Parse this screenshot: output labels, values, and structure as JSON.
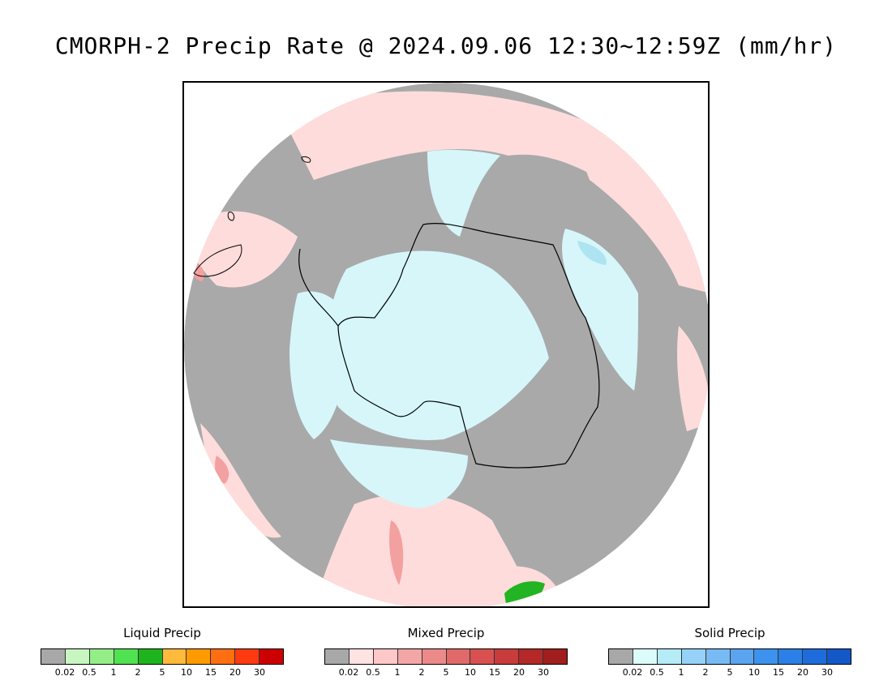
{
  "title": "CMORPH-2 Precip Rate @ 2024.09.06 12:30~12:59Z (mm/hr)",
  "map": {
    "projection": "south-polar-stereographic",
    "colors": {
      "no_precip": "#a9a9a9",
      "ocean_background": "#ffffff",
      "mixed_light": "#ffdcdc",
      "mixed_mid": "#f3a0a0",
      "solid_light": "#d6f6fa",
      "solid_mid": "#aee4f2",
      "liquid": "#22b422",
      "coastline": "#000000"
    }
  },
  "legends": [
    {
      "title": "Liquid Precip",
      "colors": [
        "#a8a8a8",
        "#c8f6c0",
        "#94ee88",
        "#50e250",
        "#1eb41e",
        "#ffba3c",
        "#ff9a00",
        "#ff6e10",
        "#ff3a10",
        "#cc0000"
      ],
      "ticks": [
        "0.02",
        "0.5",
        "1",
        "2",
        "5",
        "10",
        "15",
        "20",
        "30"
      ]
    },
    {
      "title": "Mixed Precip",
      "colors": [
        "#a8a8a8",
        "#ffe2e2",
        "#ffc8c8",
        "#f4a6a6",
        "#ec8a8a",
        "#e06a6a",
        "#d85050",
        "#c83c3c",
        "#b42828",
        "#a01e1e"
      ],
      "ticks": [
        "0.02",
        "0.5",
        "1",
        "2",
        "5",
        "10",
        "15",
        "20",
        "30"
      ]
    },
    {
      "title": "Solid Precip",
      "colors": [
        "#a8a8a8",
        "#dcfcfc",
        "#b4ecf8",
        "#96d2f8",
        "#78baf4",
        "#5aa4f0",
        "#3c92ec",
        "#2a80e6",
        "#1e6cdc",
        "#1458c8"
      ],
      "ticks": [
        "0.02",
        "0.5",
        "1",
        "2",
        "5",
        "10",
        "15",
        "20",
        "30"
      ]
    }
  ]
}
